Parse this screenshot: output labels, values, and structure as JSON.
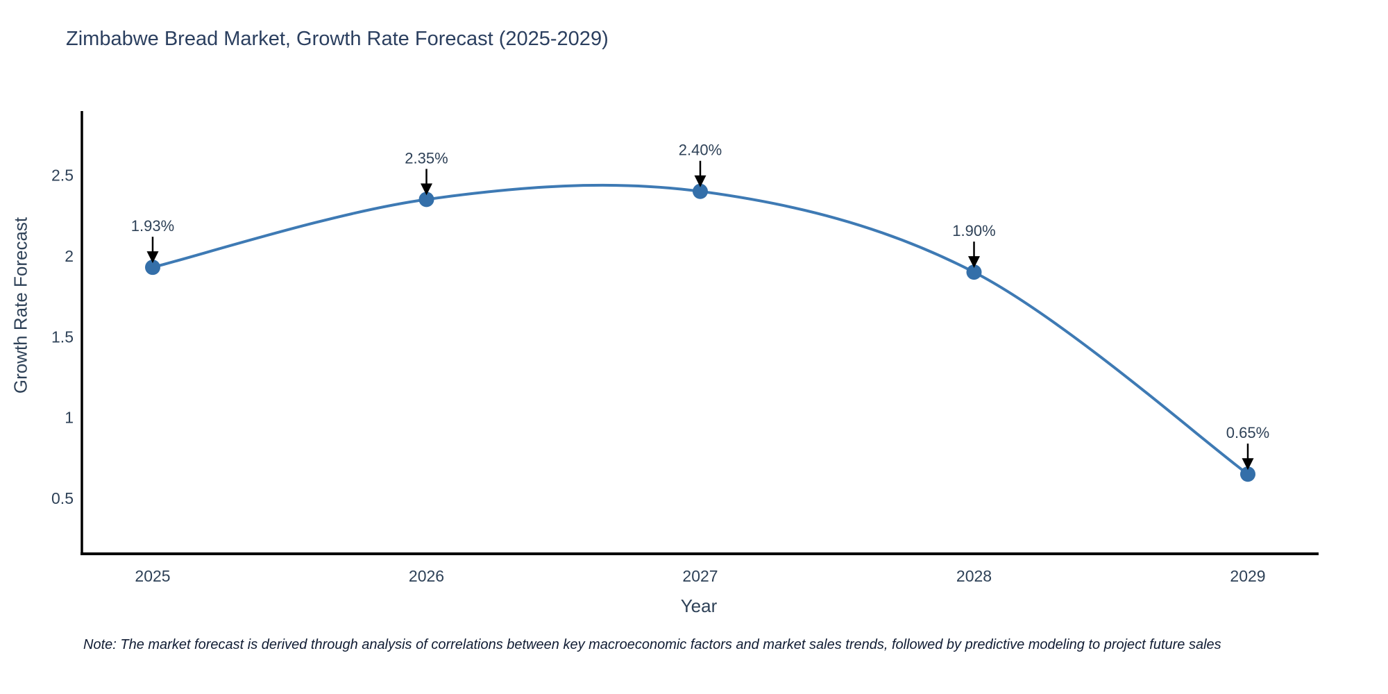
{
  "title": "Zimbabwe Bread Market, Growth Rate Forecast (2025-2029)",
  "note": "Note: The market forecast is derived through analysis of correlations between key macroeconomic factors and market sales trends, followed by predictive modeling to project future sales",
  "chart_data": {
    "type": "line",
    "title": "Zimbabwe Bread Market, Growth Rate Forecast (2025-2029)",
    "xlabel": "Year",
    "ylabel": "Growth Rate Forecast",
    "x": [
      2025,
      2026,
      2027,
      2028,
      2029
    ],
    "values": [
      1.93,
      2.35,
      2.4,
      1.9,
      0.65
    ],
    "point_labels": [
      "1.93%",
      "2.35%",
      "2.40%",
      "1.90%",
      "0.65%"
    ],
    "xticks": [
      "2025",
      "2026",
      "2027",
      "2028",
      "2029"
    ],
    "yticks": [
      0.5,
      1,
      1.5,
      2,
      2.5
    ],
    "ylim": [
      0.157,
      2.897
    ],
    "xlim": [
      2024.74,
      2029.26
    ],
    "grid": false,
    "legend_position": "none",
    "line_shape": "spline",
    "colors": {
      "line": "#3e7ab4",
      "marker": "#346fa9",
      "axis": "#000000",
      "annotation_arrow": "#000000",
      "tick_text": "#2e4157",
      "title_text": "#2b3f5f"
    }
  }
}
